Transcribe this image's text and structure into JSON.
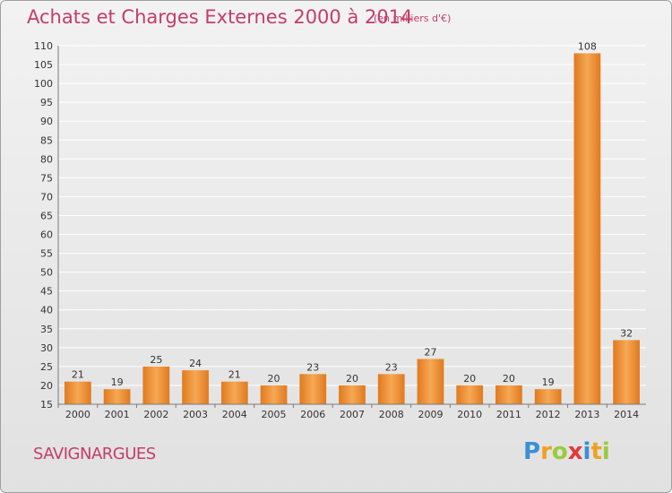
{
  "header": {
    "title": "Achats et Charges Externes 2000 à 2014",
    "subtitle": "(en milliers d'€)"
  },
  "footer": {
    "place": "SAVIGNARGUES",
    "brand": {
      "letters": [
        "P",
        "r",
        "o",
        "x",
        "i",
        "t",
        "i"
      ],
      "colors": [
        "#3a8fd6",
        "#f0a020",
        "#9acb3c",
        "#e03a3a",
        "#3a8fd6",
        "#f0a020",
        "#9acb3c"
      ]
    }
  },
  "colors": {
    "title": "#c43c6b",
    "bar_light": "#f6a855",
    "bar_dark": "#e07a1e",
    "axis": "#7a7a7a",
    "grid": "#ffffff"
  },
  "chart_data": {
    "type": "bar",
    "title": "Achats et Charges Externes 2000 à 2014",
    "subtitle": "(en milliers d'€)",
    "categories": [
      "2000",
      "2001",
      "2002",
      "2003",
      "2004",
      "2005",
      "2006",
      "2007",
      "2008",
      "2009",
      "2010",
      "2011",
      "2012",
      "2013",
      "2014"
    ],
    "values": [
      21,
      19,
      25,
      24,
      21,
      20,
      23,
      20,
      23,
      27,
      20,
      20,
      19,
      108,
      32
    ],
    "ylim": [
      15,
      110
    ],
    "yticks": [
      15,
      20,
      25,
      30,
      35,
      40,
      45,
      50,
      55,
      60,
      65,
      70,
      75,
      80,
      85,
      90,
      95,
      100,
      105,
      110
    ],
    "grid": true,
    "xlabel": "",
    "ylabel": ""
  }
}
